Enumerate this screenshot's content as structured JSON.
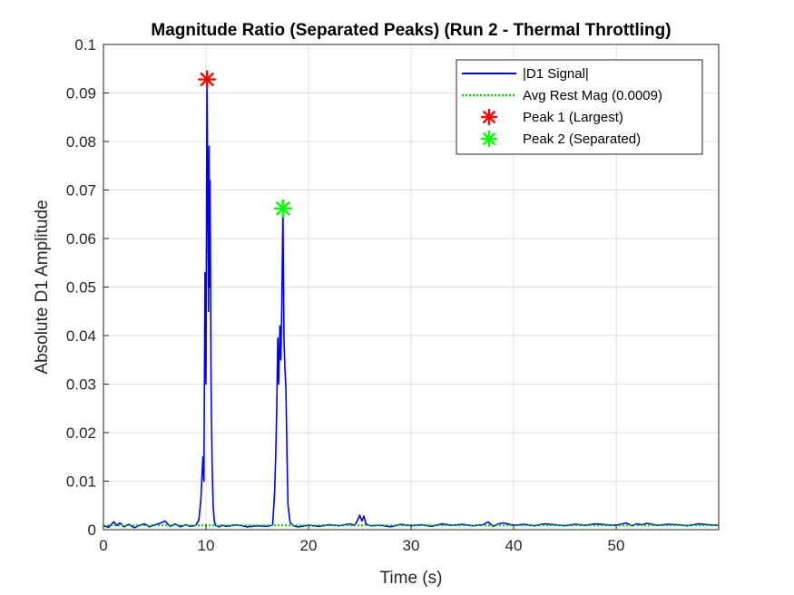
{
  "chart_data": {
    "type": "line",
    "title": "Magnitude Ratio (Separated Peaks) (Run 2 - Thermal Throttling)",
    "xlabel": "Time (s)",
    "ylabel": "Absolute D1 Amplitude",
    "xlim": [
      0,
      60
    ],
    "ylim": [
      0,
      0.1
    ],
    "xticks": [
      0,
      10,
      20,
      30,
      40,
      50
    ],
    "yticks": [
      0,
      0.01,
      0.02,
      0.03,
      0.04,
      0.05,
      0.06,
      0.07,
      0.08,
      0.09,
      0.1
    ],
    "grid": true,
    "legend_position": "top-right",
    "series": [
      {
        "name": "|D1 Signal|",
        "style": "line",
        "color": "#0000ff",
        "x": [
          0,
          0.5,
          1.0,
          1.3,
          1.6,
          2.0,
          2.5,
          3.0,
          3.5,
          4.0,
          4.5,
          5.0,
          5.5,
          6.0,
          6.5,
          7.0,
          7.5,
          8.0,
          8.5,
          9.0,
          9.3,
          9.5,
          9.7,
          9.8,
          9.9,
          10.0,
          10.1,
          10.2,
          10.25,
          10.3,
          10.35,
          10.4,
          10.5,
          10.6,
          10.7,
          10.8,
          10.9,
          11.0,
          11.3,
          11.6,
          12.0,
          13.0,
          14.0,
          15.0,
          16.0,
          16.5,
          16.7,
          16.8,
          16.9,
          17.0,
          17.1,
          17.2,
          17.3,
          17.4,
          17.5,
          17.6,
          17.7,
          17.8,
          17.9,
          18.0,
          18.2,
          18.5,
          19.0,
          20.0,
          21.0,
          22.0,
          23.0,
          24.0,
          24.5,
          24.8,
          25.0,
          25.2,
          25.4,
          25.6,
          26.0,
          27.0,
          28.0,
          29.0,
          30.0,
          31.0,
          32.0,
          33.0,
          34.0,
          35.0,
          36.0,
          37.0,
          37.5,
          38.0,
          38.5,
          39.0,
          40.0,
          41.0,
          42.0,
          43.0,
          44.0,
          45.0,
          46.0,
          47.0,
          48.0,
          49.0,
          50.0,
          51.0,
          51.5,
          52.0,
          52.5,
          53.0,
          54.0,
          55.0,
          56.0,
          57.0,
          58.0,
          59.0,
          60.0
        ],
        "y": [
          0.0008,
          0.0005,
          0.0016,
          0.0009,
          0.0014,
          0.0006,
          0.0011,
          0.0004,
          0.0009,
          0.0012,
          0.0006,
          0.001,
          0.0013,
          0.0018,
          0.0007,
          0.0012,
          0.0006,
          0.001,
          0.0007,
          0.0009,
          0.002,
          0.006,
          0.015,
          0.01,
          0.053,
          0.03,
          0.0928,
          0.06,
          0.045,
          0.079,
          0.05,
          0.072,
          0.03,
          0.013,
          0.005,
          0.002,
          0.001,
          0.0008,
          0.0006,
          0.0009,
          0.0007,
          0.001,
          0.0006,
          0.0008,
          0.0007,
          0.001,
          0.008,
          0.015,
          0.025,
          0.0395,
          0.03,
          0.042,
          0.035,
          0.047,
          0.0662,
          0.04,
          0.033,
          0.029,
          0.015,
          0.005,
          0.0015,
          0.0008,
          0.0006,
          0.0009,
          0.0007,
          0.001,
          0.0008,
          0.0012,
          0.0009,
          0.002,
          0.003,
          0.0018,
          0.0028,
          0.0012,
          0.0008,
          0.0009,
          0.0006,
          0.0011,
          0.0008,
          0.001,
          0.0007,
          0.0012,
          0.0009,
          0.0011,
          0.0008,
          0.001,
          0.0016,
          0.0007,
          0.0012,
          0.0014,
          0.0009,
          0.0011,
          0.0008,
          0.0012,
          0.001,
          0.0008,
          0.0011,
          0.0009,
          0.0012,
          0.001,
          0.0009,
          0.0014,
          0.0008,
          0.0012,
          0.001,
          0.0013,
          0.0009,
          0.0011,
          0.001,
          0.0008,
          0.0012,
          0.001,
          0.0009
        ]
      },
      {
        "name": "Avg Rest Mag (0.0009)",
        "style": "dotted",
        "color": "#00cc00",
        "x": [
          0,
          60
        ],
        "y": [
          0.0009,
          0.0009
        ]
      },
      {
        "name": "Peak 1 (Largest)",
        "style": "marker",
        "color": "#ff0000",
        "x": [
          10.1
        ],
        "y": [
          0.0928
        ]
      },
      {
        "name": "Peak 2 (Separated)",
        "style": "marker",
        "color": "#00ff00",
        "x": [
          17.5
        ],
        "y": [
          0.0662
        ]
      }
    ]
  }
}
